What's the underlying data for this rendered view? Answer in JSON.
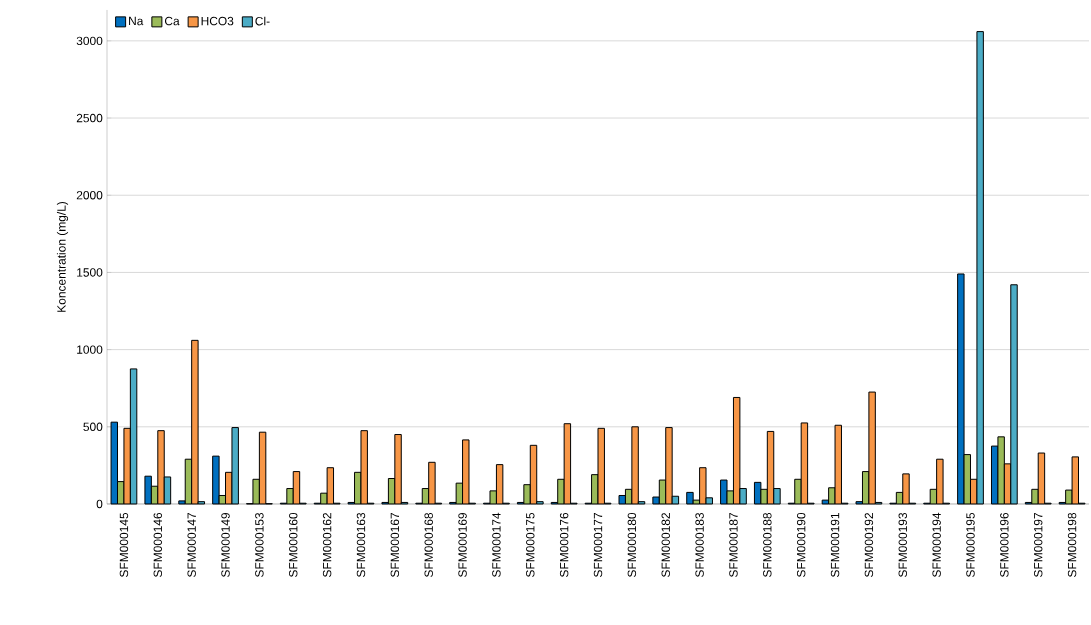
{
  "chart_data": {
    "type": "bar",
    "ylabel": "Koncentration (mg/L)",
    "categories": [
      "SFM000145",
      "SFM000146",
      "SFM000147",
      "SFM000149",
      "SFM000153",
      "SFM000160",
      "SFM000162",
      "SFM000163",
      "SFM000167",
      "SFM000168",
      "SFM000169",
      "SFM000174",
      "SFM000175",
      "SFM000176",
      "SFM000177",
      "SFM000180",
      "SFM000182",
      "SFM000183",
      "SFM000187",
      "SFM000188",
      "SFM000190",
      "SFM000191",
      "SFM000192",
      "SFM000193",
      "SFM000194",
      "SFM000195",
      "SFM000196",
      "SFM000197",
      "SFM000198"
    ],
    "series": [
      {
        "name": "Na",
        "color": "#0070c0",
        "values": [
          530,
          180,
          20,
          310,
          2,
          5,
          5,
          10,
          10,
          5,
          10,
          5,
          10,
          10,
          5,
          55,
          45,
          75,
          155,
          140,
          5,
          25,
          15,
          5,
          5,
          1490,
          375,
          10,
          10
        ]
      },
      {
        "name": "Ca",
        "color": "#9bbb59",
        "values": [
          145,
          115,
          290,
          55,
          160,
          100,
          70,
          205,
          165,
          100,
          135,
          85,
          125,
          160,
          190,
          95,
          155,
          25,
          85,
          95,
          160,
          105,
          210,
          75,
          95,
          320,
          435,
          95,
          90
        ]
      },
      {
        "name": "HCO3",
        "color": "#f79646",
        "values": [
          490,
          475,
          1060,
          205,
          465,
          210,
          235,
          475,
          450,
          270,
          415,
          255,
          380,
          520,
          490,
          500,
          495,
          235,
          690,
          470,
          525,
          510,
          725,
          195,
          290,
          160,
          260,
          330,
          305
        ]
      },
      {
        "name": "Cl-",
        "color": "#4bacc6",
        "values": [
          875,
          175,
          15,
          495,
          2,
          5,
          5,
          5,
          10,
          5,
          5,
          5,
          15,
          5,
          5,
          15,
          50,
          40,
          100,
          100,
          5,
          5,
          10,
          5,
          5,
          3060,
          1420,
          5,
          5
        ]
      }
    ],
    "ylim": [
      0,
      3200
    ],
    "yticks": [
      0,
      500,
      1000,
      1500,
      2000,
      2500,
      3000
    ],
    "grid": "y",
    "legend": "top left"
  }
}
